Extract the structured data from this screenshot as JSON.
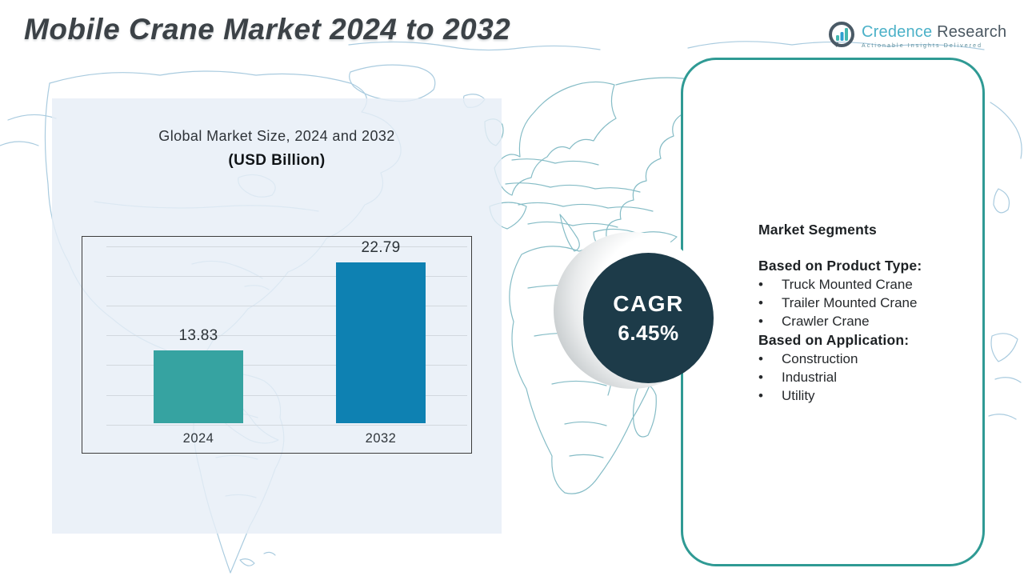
{
  "header": {
    "title": "Mobile Crane Market 2024 to 2032"
  },
  "logo": {
    "brand_primary": "Credence",
    "brand_secondary": " Research",
    "tagline": "Actionable Insights Delivered",
    "icon": "bar-chart-in-speech-bubble",
    "colors": {
      "primary": "#4bb1c8",
      "secondary": "#4b5862",
      "ring": "#4a5a66"
    }
  },
  "chart_data": {
    "type": "bar",
    "title": "Global Market Size, 2024 and 2032",
    "subtitle": "(USD Billion)",
    "categories": [
      "2024",
      "2032"
    ],
    "values": [
      13.83,
      22.79
    ],
    "value_labels": [
      "13.83",
      "22.79"
    ],
    "bar_colors": [
      "#36a3a1",
      "#0e81b2"
    ],
    "xlabel": "",
    "ylabel": "",
    "ylim": [
      6.5,
      25.5
    ],
    "grid": true,
    "gridline_count": 7,
    "legend": "none"
  },
  "cagr": {
    "label": "CAGR",
    "value": "6.45%",
    "circle_color": "#1d3b49"
  },
  "segments": {
    "heading": "Market Segments",
    "bullet": "•",
    "groups": [
      {
        "title": "Based on Product Type:",
        "items": [
          "Truck Mounted Crane",
          "Trailer Mounted Crane",
          "Crawler Crane"
        ]
      },
      {
        "title": "Based on Application:",
        "items": [
          "Construction",
          "Industrial",
          "Utility"
        ]
      }
    ]
  },
  "colors": {
    "panel_bg": "#e6eef7",
    "card_border": "#2f9a94",
    "map_stroke_blue": "#a9cbdf",
    "map_stroke_teal": "#85bcc6",
    "title_text": "#3c4247"
  }
}
